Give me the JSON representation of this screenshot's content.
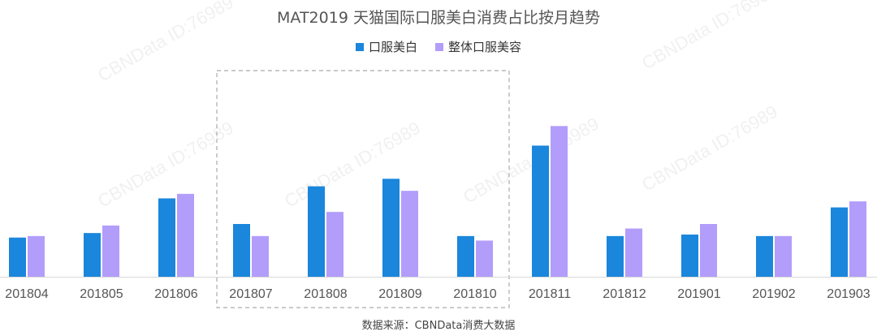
{
  "chart_data": {
    "type": "bar",
    "title": "MAT2019 天猫国际口服美白消费占比按月趋势",
    "categories": [
      "201804",
      "201805",
      "201806",
      "201807",
      "201808",
      "201809",
      "201810",
      "201811",
      "201812",
      "201901",
      "201902",
      "201903"
    ],
    "series": [
      {
        "name": "口服美白",
        "color": "#1a86dc",
        "values": [
          26,
          29,
          52,
          35,
          60,
          65,
          27,
          87,
          27,
          28,
          27,
          46
        ]
      },
      {
        "name": "整体口服美容",
        "color": "#b29dfb",
        "values": [
          27,
          34,
          55,
          27,
          43,
          57,
          24,
          100,
          32,
          35,
          27,
          50
        ]
      }
    ],
    "ylim": [
      0,
      105
    ],
    "highlight": {
      "from": "201807",
      "to": "201810"
    },
    "xlabel": "",
    "ylabel": "",
    "grid": false,
    "legend_position": "top-center"
  },
  "source": "数据来源：CBNData消费大数据",
  "watermark": "CBNData ID:76989"
}
